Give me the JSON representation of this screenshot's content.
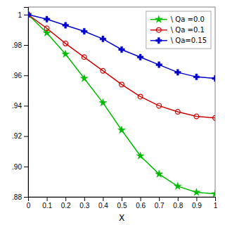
{
  "chart_data": {
    "type": "line",
    "xlabel": "X",
    "xlim": [
      0,
      1.0
    ],
    "ylim": [
      0.88,
      1.005
    ],
    "xticks": [
      0,
      0.1,
      0.2,
      0.3,
      0.4,
      0.5,
      0.6,
      0.7,
      0.8,
      0.9,
      1
    ],
    "yticks": [
      {
        "value": 0.88,
        "label": ".88"
      },
      {
        "value": 0.9,
        "label": ".90"
      },
      {
        "value": 0.92,
        "label": ".92"
      },
      {
        "value": 0.94,
        "label": ".94"
      },
      {
        "value": 0.96,
        "label": ".96"
      },
      {
        "value": 0.98,
        "label": ".98"
      },
      1
    ],
    "grid": false,
    "legend": "upper right",
    "x": [
      0.0,
      0.1,
      0.2,
      0.3,
      0.4,
      0.5,
      0.6,
      0.7,
      0.8,
      0.9,
      1.0
    ],
    "series": [
      {
        "name": "\\ Qa =0.0",
        "color": "#00bb00",
        "marker": "star",
        "values": [
          1.0,
          0.988,
          0.974,
          0.958,
          0.942,
          0.924,
          0.907,
          0.895,
          0.887,
          0.883,
          0.882
        ]
      },
      {
        "name": "\\ Qa =0.1",
        "color": "#cc0000",
        "marker": "circle",
        "values": [
          1.0,
          0.991,
          0.981,
          0.972,
          0.963,
          0.954,
          0.946,
          0.94,
          0.936,
          0.933,
          0.932
        ]
      },
      {
        "name": "\\ Qa=0.15",
        "color": "#0000cc",
        "marker": "plus",
        "values": [
          1.0,
          0.997,
          0.993,
          0.989,
          0.984,
          0.977,
          0.972,
          0.967,
          0.962,
          0.959,
          0.958
        ]
      }
    ]
  }
}
